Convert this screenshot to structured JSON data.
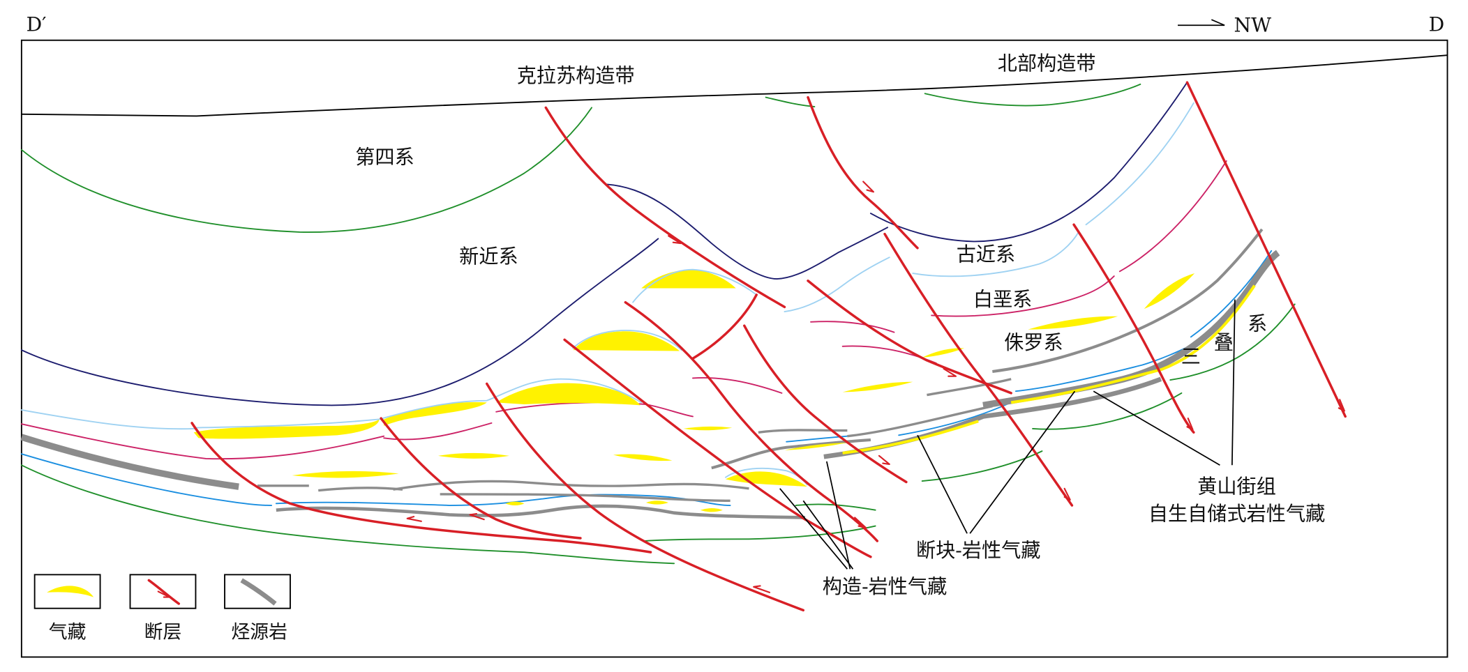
{
  "section": {
    "left_end": "D′",
    "right_end": "D",
    "direction": "NW"
  },
  "zones": {
    "kelasu": "克拉苏构造带",
    "northern": "北部构造带"
  },
  "strata": {
    "quaternary": "第四系",
    "neogene": "新近系",
    "paleogene": "古近系",
    "cretaceous": "白垩系",
    "jurassic": "侏罗系",
    "triassic": [
      "三",
      "叠",
      "系"
    ]
  },
  "annotations": {
    "huangshanjie_formation": "黄山街组",
    "self_generated_reservoir": "自生自储式岩性气藏",
    "fault_block_reservoir": "断块-岩性气藏",
    "structural_reservoir": "构造-岩性气藏"
  },
  "legend": [
    {
      "label": "气藏",
      "icon": "gas-reservoir-icon"
    },
    {
      "label": "断层",
      "icon": "fault-icon"
    },
    {
      "label": "烃源岩",
      "icon": "source-rock-icon"
    }
  ],
  "colors": {
    "fault": "#d81f26",
    "gas_reservoir": "#fff200",
    "source_rock": "#8c8c8c",
    "horizon_green": "#1f8f2a",
    "horizon_navy": "#1c1c6e",
    "horizon_light_blue": "#9fd2f2",
    "horizon_magenta": "#cc2266",
    "horizon_blue": "#1a8ee0",
    "line": "#000000"
  }
}
